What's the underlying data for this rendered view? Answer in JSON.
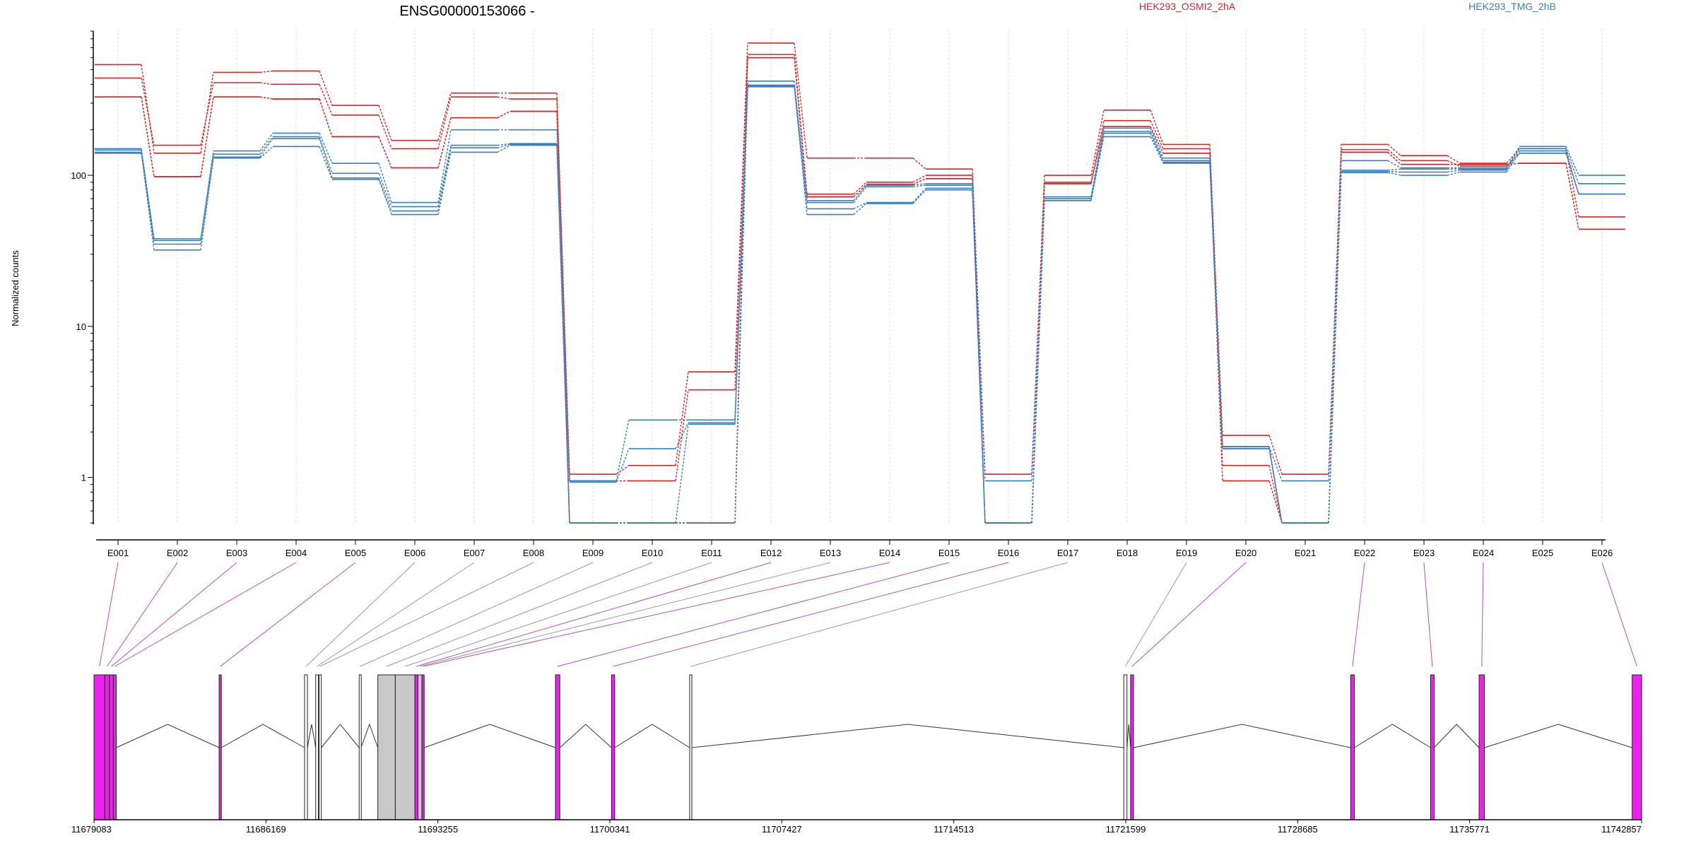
{
  "chart_data": {
    "type": "line",
    "title": "ENSG00000153066 -",
    "ylabel": "Normalized counts",
    "xlabel": "",
    "y_scale": "log",
    "ylim": [
      0.5,
      900
    ],
    "y_ticks": [
      {
        "value": 1,
        "label": "1"
      },
      {
        "value": 10,
        "label": "10"
      },
      {
        "value": 100,
        "label": "100"
      }
    ],
    "categories": [
      "E001",
      "E002",
      "E003",
      "E004",
      "E005",
      "E006",
      "E007",
      "E008",
      "E009",
      "E010",
      "E011",
      "E012",
      "E013",
      "E014",
      "E015",
      "E016",
      "E017",
      "E018",
      "E019",
      "E020",
      "E021",
      "E022",
      "E023",
      "E024",
      "E025",
      "E026"
    ],
    "legend": [
      {
        "label": "HEK293_OSMI2_2hA",
        "color": "#d62728"
      },
      {
        "label": "HEK293_TMG_2hB",
        "color": "#3a7ebf"
      }
    ],
    "series": [
      {
        "group": "HEK293_OSMI2_2hA",
        "color": "#d62728",
        "values": [
          540,
          140,
          480,
          490,
          290,
          170,
          350,
          350,
          1.05,
          1.2,
          5.0,
          750,
          130,
          130,
          110,
          1.05,
          100,
          270,
          160,
          1.9,
          1.05,
          160,
          135,
          120,
          150,
          53
        ]
      },
      {
        "group": "HEK293_OSMI2_2hA",
        "color": "#d62728",
        "values": [
          440,
          158,
          410,
          400,
          250,
          150,
          330,
          320,
          0.95,
          0.95,
          3.8,
          630,
          75,
          90,
          100,
          0.5,
          90,
          230,
          150,
          1.6,
          0.5,
          148,
          125,
          115,
          140,
          75
        ]
      },
      {
        "group": "HEK293_OSMI2_2hA",
        "color": "#d62728",
        "values": [
          330,
          98,
          330,
          320,
          180,
          112,
          240,
          265,
          0.5,
          0.5,
          0.5,
          600,
          72,
          87,
          95,
          0.5,
          88,
          210,
          140,
          1.2,
          0.5,
          142,
          118,
          118,
          120,
          44
        ]
      },
      {
        "group": "HEK293_OSMI2_2hA",
        "color": "#d62728",
        "values": [
          330,
          98,
          330,
          320,
          180,
          112,
          240,
          265,
          0.5,
          0.5,
          0.5,
          600,
          72,
          87,
          95,
          0.5,
          88,
          210,
          140,
          0.95,
          0.5,
          142,
          118,
          118,
          120,
          44
        ]
      },
      {
        "group": "HEK293_TMG_2hB",
        "color": "#3a7ebf",
        "values": [
          150,
          38,
          145,
          190,
          120,
          66,
          200,
          200,
          0.95,
          2.4,
          2.4,
          420,
          68,
          86,
          88,
          0.95,
          72,
          205,
          130,
          1.6,
          0.95,
          125,
          112,
          112,
          155,
          100
        ]
      },
      {
        "group": "HEK293_TMG_2hB",
        "color": "#3a7ebf",
        "values": [
          147,
          37,
          138,
          180,
          103,
          62,
          158,
          162,
          0.93,
          1.55,
          2.3,
          395,
          66,
          84,
          86,
          0.5,
          70,
          195,
          125,
          1.6,
          0.5,
          108,
          110,
          110,
          150,
          88
        ]
      },
      {
        "group": "HEK293_TMG_2hB",
        "color": "#3a7ebf",
        "values": [
          142,
          35,
          132,
          175,
          96,
          58,
          152,
          160,
          0.5,
          0.5,
          2.25,
          390,
          60,
          66,
          82,
          0.5,
          68,
          190,
          122,
          1.55,
          0.5,
          106,
          105,
          108,
          145,
          75
        ]
      },
      {
        "group": "HEK293_TMG_2hB",
        "color": "#3a7ebf",
        "values": [
          140,
          32,
          130,
          155,
          94,
          55,
          142,
          158,
          0.5,
          0.5,
          0.5,
          385,
          55,
          65,
          80,
          0.5,
          68,
          180,
          120,
          1.55,
          0.5,
          104,
          100,
          105,
          140,
          75
        ]
      }
    ],
    "gene_track": {
      "coordinate_range": [
        11679083,
        11742857
      ],
      "coordinate_ticks": [
        "11679083",
        "11686169",
        "11693255",
        "11700341",
        "11707427",
        "11714513",
        "11721599",
        "11728685",
        "11735771",
        "11742857"
      ],
      "exons": [
        {
          "start": 11679083,
          "end": 11679530,
          "fill": "#ee22ee",
          "link": "E001"
        },
        {
          "start": 11679530,
          "end": 11679720,
          "fill": "#ee22ee",
          "link": "E002"
        },
        {
          "start": 11679720,
          "end": 11679880,
          "fill": "#ee22ee",
          "link": "E003"
        },
        {
          "start": 11679880,
          "end": 11680000,
          "fill": "#ee22ee",
          "link": "E004"
        },
        {
          "start": 11684240,
          "end": 11684330,
          "fill": "#ee22ee",
          "link": "E005"
        },
        {
          "start": 11687760,
          "end": 11687880,
          "fill": "#ffffff",
          "link": "E006"
        },
        {
          "start": 11688220,
          "end": 11688330,
          "fill": "#ffffff",
          "link": "E007"
        },
        {
          "start": 11688360,
          "end": 11688450,
          "fill": "#ffffff",
          "link": "E008"
        },
        {
          "start": 11690010,
          "end": 11690090,
          "fill": "#ffffff",
          "link": "E009"
        },
        {
          "start": 11690780,
          "end": 11691500,
          "fill": "#c8c8c8",
          "link": "E010"
        },
        {
          "start": 11691500,
          "end": 11692310,
          "fill": "#c8c8c8",
          "link": "E011"
        },
        {
          "start": 11692310,
          "end": 11692430,
          "fill": "#ee22ee",
          "link": "E012"
        },
        {
          "start": 11692430,
          "end": 11692600,
          "fill": "#c8c8c8",
          "link": "E013"
        },
        {
          "start": 11692600,
          "end": 11692690,
          "fill": "#ee22ee",
          "link": "E014"
        },
        {
          "start": 11698100,
          "end": 11698280,
          "fill": "#ee22ee",
          "link": "E015"
        },
        {
          "start": 11700410,
          "end": 11700540,
          "fill": "#ee22ee",
          "link": "E016"
        },
        {
          "start": 11703630,
          "end": 11703720,
          "fill": "#ffffff",
          "link": "E017"
        },
        {
          "start": 11721520,
          "end": 11721650,
          "fill": "#ffffff",
          "link": "E019"
        },
        {
          "start": 11721800,
          "end": 11721920,
          "fill": "#ee22ee",
          "link": "E020"
        },
        {
          "start": 11730870,
          "end": 11731020,
          "fill": "#ee22ee",
          "link": "E022"
        },
        {
          "start": 11734160,
          "end": 11734310,
          "fill": "#ee22ee",
          "link": "E023"
        },
        {
          "start": 11736160,
          "end": 11736380,
          "fill": "#ee22ee",
          "link": "E024"
        },
        {
          "start": 11742470,
          "end": 11742857,
          "fill": "#ee22ee",
          "link": "E026"
        }
      ]
    }
  }
}
